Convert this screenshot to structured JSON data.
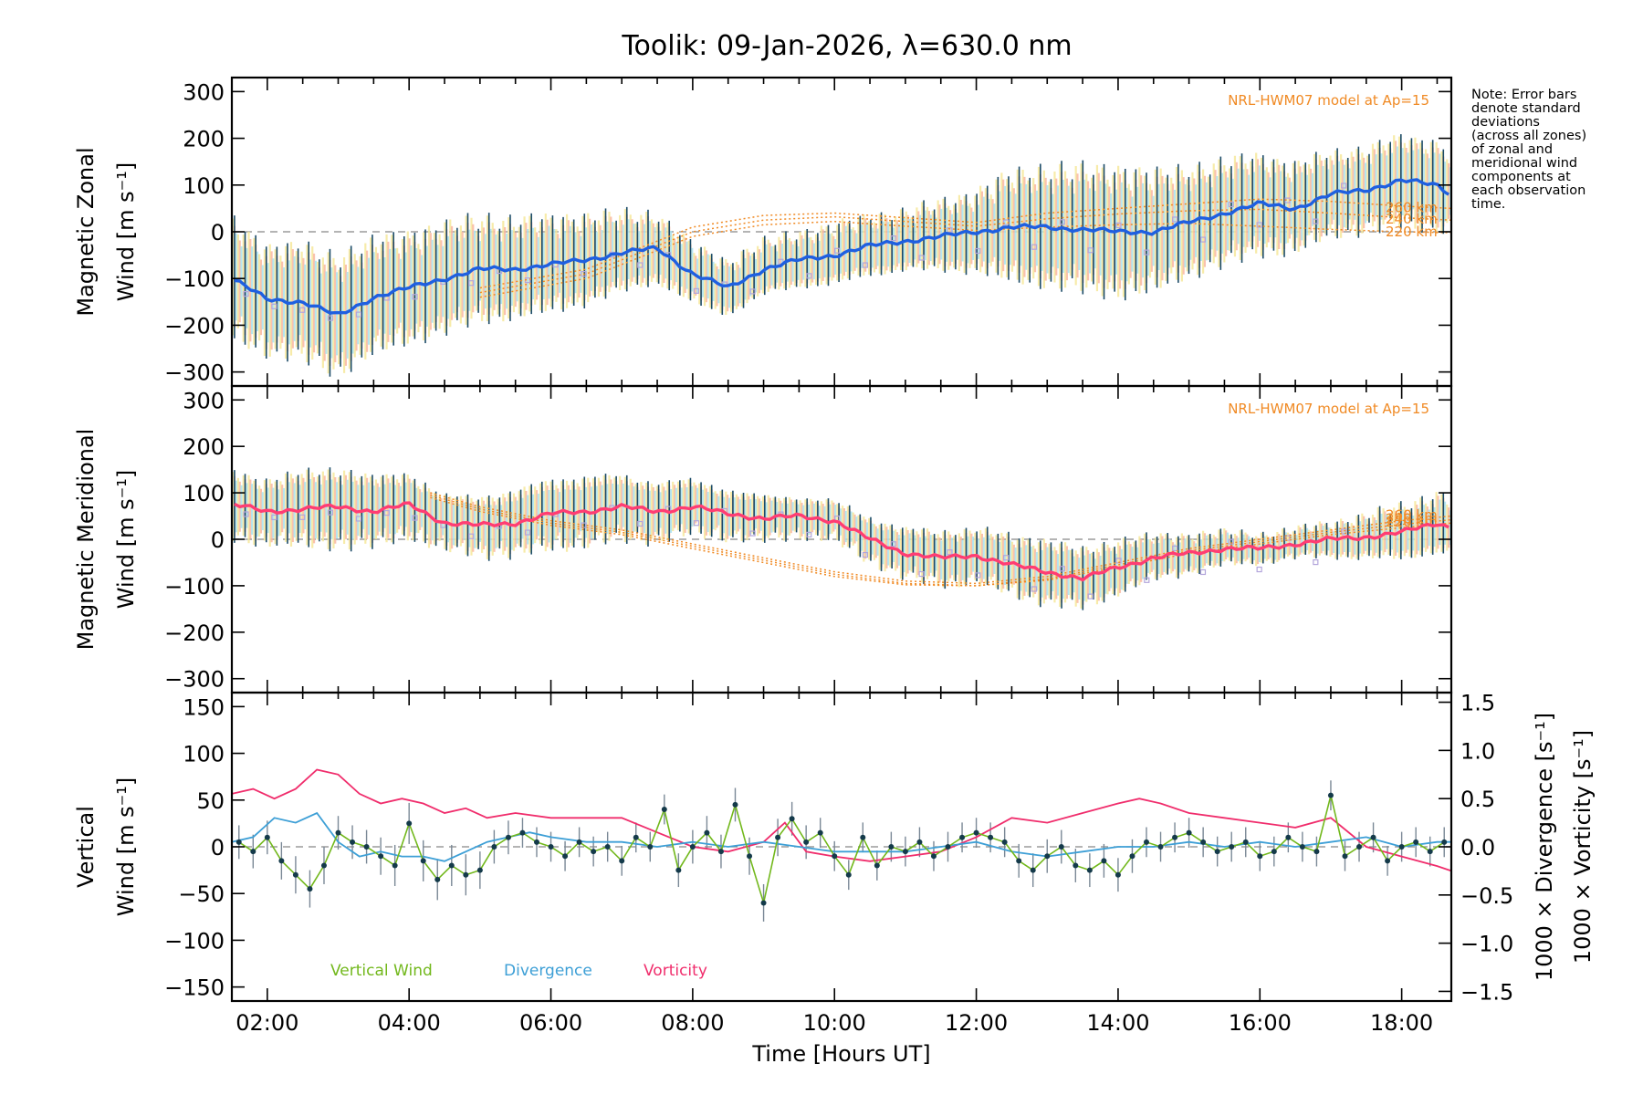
{
  "title": "Toolik: 09-Jan-2026, λ=630.0 nm",
  "note": [
    "Note: Error bars",
    "denote standard",
    "deviations",
    "(across all zones)",
    "of zonal and",
    "meridional wind",
    "components at",
    "each observation",
    "time."
  ],
  "colors": {
    "zonal": "#1f5fe0",
    "meridional": "#ff3d73",
    "vertical": "#72b81c",
    "divergence": "#3d9fd6",
    "vorticity": "#f02d6c",
    "model": "#f08a24",
    "errorbar": "#1a4a66",
    "zone_spread_a": "#f6e79a",
    "zone_spread_b": "#f9b7a0",
    "zone_spread_c": "#a9e2ee",
    "outlier": "#b3a6db"
  },
  "chart_data": [
    {
      "id": "zonal",
      "type": "line",
      "title": "Toolik: 09-Jan-2026, λ=630.0 nm",
      "ylabel": [
        "Magnetic Zonal",
        "Wind [m s⁻¹]"
      ],
      "xlabel": "",
      "xlim": [
        1.5,
        18.7
      ],
      "ylim": [
        -330,
        330
      ],
      "yticks": [
        -300,
        -200,
        -100,
        0,
        100,
        200,
        300
      ],
      "ytick_labels": [
        "−300",
        "−200",
        "−100",
        "0",
        "100",
        "200",
        "300"
      ],
      "zero_line": true,
      "annotation": "NRL-HWM07 model at Ap=15",
      "model_heights": [
        "260 km",
        "240 km",
        "220 km"
      ],
      "series": [
        {
          "name": "Magnetic Zonal Wind",
          "x": [
            1.5,
            2.0,
            2.5,
            3.0,
            3.5,
            4.0,
            4.5,
            5.0,
            5.5,
            6.0,
            6.5,
            7.0,
            7.5,
            8.0,
            8.5,
            9.0,
            9.5,
            10.0,
            10.5,
            11.0,
            11.5,
            12.0,
            12.5,
            13.0,
            13.5,
            14.0,
            14.5,
            15.0,
            15.5,
            16.0,
            16.5,
            17.0,
            17.5,
            18.0,
            18.5,
            18.7
          ],
          "y": [
            -100,
            -145,
            -150,
            -180,
            -140,
            -120,
            -100,
            -80,
            -80,
            -70,
            -60,
            -45,
            -35,
            -90,
            -120,
            -80,
            -60,
            -50,
            -30,
            -20,
            -10,
            0,
            10,
            10,
            5,
            0,
            0,
            20,
            40,
            60,
            50,
            80,
            90,
            110,
            100,
            80
          ],
          "err": [
            120,
            110,
            115,
            120,
            115,
            110,
            110,
            105,
            100,
            95,
            90,
            80,
            70,
            60,
            55,
            55,
            55,
            60,
            60,
            60,
            70,
            80,
            110,
            120,
            125,
            130,
            120,
            110,
            105,
            100,
            90,
            85,
            85,
            90,
            90,
            80
          ]
        },
        {
          "name": "HWM07 260 km",
          "x": [
            5.0,
            6.5,
            8.0,
            9.0,
            10.0,
            11.0,
            12.0,
            13.0,
            14.0,
            15.0,
            16.0,
            17.0,
            18.0,
            18.7
          ],
          "y": [
            -120,
            -80,
            10,
            35,
            40,
            30,
            20,
            40,
            50,
            60,
            70,
            65,
            55,
            50
          ]
        },
        {
          "name": "HWM07 240 km",
          "x": [
            5.0,
            6.5,
            8.0,
            9.0,
            10.0,
            11.0,
            12.0,
            13.0,
            14.0,
            15.0,
            16.0,
            17.0,
            18.0,
            18.7
          ],
          "y": [
            -130,
            -90,
            0,
            25,
            32,
            22,
            12,
            28,
            38,
            45,
            48,
            40,
            30,
            25
          ]
        },
        {
          "name": "HWM07 220 km",
          "x": [
            5.0,
            6.5,
            8.0,
            9.0,
            10.0,
            11.0,
            12.0,
            13.0,
            14.0,
            15.0,
            16.0,
            17.0,
            18.0,
            18.7
          ],
          "y": [
            -140,
            -100,
            -10,
            15,
            22,
            12,
            3,
            10,
            15,
            18,
            12,
            5,
            0,
            -2
          ]
        }
      ]
    },
    {
      "id": "meridional",
      "type": "line",
      "ylabel": [
        "Magnetic Meridional",
        "Wind [m s⁻¹]"
      ],
      "xlabel": "",
      "xlim": [
        1.5,
        18.7
      ],
      "ylim": [
        -330,
        330
      ],
      "yticks": [
        -300,
        -200,
        -100,
        0,
        100,
        200,
        300
      ],
      "ytick_labels": [
        "−300",
        "−200",
        "−100",
        "0",
        "100",
        "200",
        "300"
      ],
      "zero_line": true,
      "annotation": "NRL-HWM07 model at Ap=15",
      "model_heights": [
        "260 km",
        "240 km",
        "220 km"
      ],
      "series": [
        {
          "name": "Magnetic Meridional Wind",
          "x": [
            1.5,
            2.0,
            2.5,
            3.0,
            3.5,
            4.0,
            4.5,
            5.0,
            5.5,
            6.0,
            6.5,
            7.0,
            7.5,
            8.0,
            8.5,
            9.0,
            9.5,
            10.0,
            10.5,
            11.0,
            11.5,
            12.0,
            12.5,
            13.0,
            13.5,
            14.0,
            14.5,
            15.0,
            15.5,
            16.0,
            16.5,
            17.0,
            17.5,
            18.0,
            18.5,
            18.7
          ],
          "y": [
            75,
            60,
            65,
            70,
            60,
            75,
            35,
            30,
            35,
            55,
            60,
            70,
            60,
            70,
            55,
            45,
            50,
            40,
            0,
            -30,
            -40,
            -35,
            -55,
            -70,
            -85,
            -60,
            -40,
            -30,
            -20,
            -20,
            -10,
            0,
            5,
            15,
            35,
            25
          ],
          "err": [
            70,
            65,
            75,
            80,
            70,
            65,
            55,
            60,
            65,
            70,
            70,
            65,
            60,
            55,
            50,
            45,
            40,
            40,
            45,
            50,
            55,
            55,
            60,
            65,
            60,
            55,
            45,
            40,
            35,
            30,
            30,
            35,
            45,
            55,
            60,
            60
          ]
        },
        {
          "name": "HWM07 260 km",
          "x": [
            4.3,
            5.0,
            6.0,
            7.0,
            8.0,
            9.0,
            10.0,
            11.0,
            12.0,
            13.0,
            14.0,
            15.0,
            16.0,
            17.0,
            18.0,
            18.7
          ],
          "y": [
            100,
            70,
            40,
            20,
            -10,
            -40,
            -70,
            -90,
            -95,
            -80,
            -50,
            -20,
            0,
            20,
            40,
            50
          ]
        },
        {
          "name": "HWM07 240 km",
          "x": [
            4.3,
            5.0,
            6.0,
            7.0,
            8.0,
            9.0,
            10.0,
            11.0,
            12.0,
            13.0,
            14.0,
            15.0,
            16.0,
            17.0,
            18.0,
            18.7
          ],
          "y": [
            95,
            65,
            35,
            15,
            -15,
            -45,
            -75,
            -95,
            -100,
            -85,
            -55,
            -25,
            -5,
            15,
            32,
            42
          ]
        },
        {
          "name": "HWM07 220 km",
          "x": [
            4.3,
            5.0,
            6.0,
            7.0,
            8.0,
            9.0,
            10.0,
            11.0,
            12.0,
            13.0,
            14.0,
            15.0,
            16.0,
            17.0,
            18.0,
            18.7
          ],
          "y": [
            90,
            60,
            30,
            10,
            -20,
            -50,
            -80,
            -98,
            -100,
            -88,
            -60,
            -30,
            -10,
            10,
            25,
            35
          ]
        }
      ]
    },
    {
      "id": "vertical",
      "type": "line",
      "ylabel_left": [
        "Vertical",
        "Wind [m s⁻¹]"
      ],
      "ylabel_right_1": "1000 × Divergence [s⁻¹]",
      "ylabel_right_2": "1000 × Vorticity [s⁻¹]",
      "xlabel": "Time [Hours UT]",
      "xlim": [
        1.5,
        18.7
      ],
      "ylim": [
        -165,
        165
      ],
      "yticks": [
        -150,
        -100,
        -50,
        0,
        50,
        100,
        150
      ],
      "ytick_labels": [
        "−150",
        "−100",
        "−50",
        "0",
        "50",
        "100",
        "150"
      ],
      "ylim_right": [
        -1.6,
        1.6
      ],
      "yticks_right": [
        -1.5,
        -1.0,
        -0.5,
        0.0,
        0.5,
        1.0,
        1.5
      ],
      "ytick_labels_right": [
        "−1.5",
        "−1.0",
        "−0.5",
        "0.0",
        "0.5",
        "1.0",
        "1.5"
      ],
      "xticks": [
        2,
        4,
        6,
        8,
        10,
        12,
        14,
        16,
        18
      ],
      "xtick_labels": [
        "02:00",
        "04:00",
        "06:00",
        "08:00",
        "10:00",
        "12:00",
        "14:00",
        "16:00",
        "18:00"
      ],
      "zero_line": true,
      "legend": [
        "Vertical Wind",
        "Divergence",
        "Vorticity"
      ],
      "series": [
        {
          "name": "Vertical Wind",
          "axis": "left",
          "x": [
            1.6,
            1.8,
            2.0,
            2.2,
            2.4,
            2.6,
            2.8,
            3.0,
            3.2,
            3.4,
            3.6,
            3.8,
            4.0,
            4.2,
            4.4,
            4.6,
            4.8,
            5.0,
            5.2,
            5.4,
            5.6,
            5.8,
            6.0,
            6.2,
            6.4,
            6.6,
            6.8,
            7.0,
            7.2,
            7.4,
            7.6,
            7.8,
            8.0,
            8.2,
            8.4,
            8.6,
            8.8,
            9.0,
            9.2,
            9.4,
            9.6,
            9.8,
            10.0,
            10.2,
            10.4,
            10.6,
            10.8,
            11.0,
            11.2,
            11.4,
            11.6,
            11.8,
            12.0,
            12.2,
            12.4,
            12.6,
            12.8,
            13.0,
            13.2,
            13.4,
            13.6,
            13.8,
            14.0,
            14.2,
            14.4,
            14.6,
            14.8,
            15.0,
            15.2,
            15.4,
            15.6,
            15.8,
            16.0,
            16.2,
            16.4,
            16.6,
            16.8,
            17.0,
            17.2,
            17.4,
            17.6,
            17.8,
            18.0,
            18.2,
            18.4,
            18.6
          ],
          "y": [
            5,
            -5,
            10,
            -15,
            -30,
            -45,
            -20,
            15,
            5,
            0,
            -10,
            -20,
            25,
            -15,
            -35,
            -20,
            -30,
            -25,
            0,
            10,
            15,
            5,
            0,
            -10,
            5,
            -5,
            0,
            -15,
            10,
            0,
            40,
            -25,
            0,
            15,
            -5,
            45,
            -10,
            -60,
            10,
            30,
            5,
            15,
            -10,
            -30,
            10,
            -20,
            0,
            -5,
            5,
            -10,
            0,
            10,
            15,
            10,
            5,
            -15,
            -25,
            -10,
            0,
            -20,
            -25,
            -15,
            -30,
            -10,
            5,
            0,
            10,
            15,
            5,
            -5,
            0,
            5,
            -10,
            -5,
            10,
            0,
            -5,
            55,
            -10,
            0,
            10,
            -15,
            0,
            5,
            -5,
            5
          ],
          "err": [
            18,
            18,
            18,
            20,
            20,
            20,
            20,
            18,
            18,
            18,
            20,
            22,
            22,
            22,
            22,
            22,
            22,
            20,
            18,
            18,
            16,
            16,
            16,
            16,
            16,
            16,
            16,
            16,
            16,
            16,
            16,
            18,
            18,
            18,
            18,
            18,
            20,
            20,
            20,
            18,
            18,
            16,
            16,
            16,
            16,
            16,
            16,
            16,
            16,
            16,
            16,
            16,
            16,
            16,
            16,
            18,
            18,
            18,
            18,
            18,
            18,
            18,
            18,
            18,
            16,
            16,
            16,
            16,
            16,
            16,
            16,
            16,
            16,
            16,
            16,
            16,
            16,
            16,
            16,
            16,
            16,
            16,
            16,
            16,
            16,
            16
          ]
        },
        {
          "name": "Divergence",
          "axis": "right",
          "x": [
            1.5,
            1.8,
            2.1,
            2.4,
            2.7,
            3.0,
            3.3,
            3.6,
            3.9,
            4.2,
            4.5,
            4.8,
            5.1,
            5.4,
            5.7,
            6.0,
            6.5,
            7.0,
            7.5,
            8.0,
            8.5,
            9.0,
            9.5,
            10.0,
            10.5,
            11.0,
            11.5,
            12.0,
            12.5,
            13.0,
            13.5,
            14.0,
            14.5,
            15.0,
            15.5,
            16.0,
            16.5,
            17.0,
            17.5,
            18.0,
            18.5,
            18.7
          ],
          "y": [
            0.05,
            0.1,
            0.3,
            0.25,
            0.35,
            0.05,
            -0.1,
            -0.05,
            -0.1,
            -0.1,
            -0.15,
            -0.05,
            0.05,
            0.1,
            0.15,
            0.1,
            0.05,
            0.05,
            0.0,
            0.05,
            0.0,
            0.05,
            0.0,
            -0.05,
            -0.05,
            -0.05,
            0.0,
            0.05,
            -0.05,
            -0.1,
            -0.05,
            0.0,
            0.0,
            0.05,
            0.0,
            0.05,
            0.0,
            0.05,
            0.1,
            0.0,
            0.05,
            0.05
          ]
        },
        {
          "name": "Vorticity",
          "axis": "right",
          "x": [
            1.5,
            1.8,
            2.1,
            2.4,
            2.7,
            3.0,
            3.3,
            3.6,
            3.9,
            4.2,
            4.5,
            4.8,
            5.1,
            5.5,
            6.0,
            6.5,
            7.0,
            7.5,
            8.0,
            8.5,
            9.0,
            9.3,
            9.6,
            10.0,
            10.5,
            11.0,
            11.5,
            12.0,
            12.5,
            13.0,
            13.5,
            14.0,
            14.3,
            14.6,
            15.0,
            15.5,
            16.0,
            16.5,
            17.0,
            17.5,
            18.0,
            18.5,
            18.7
          ],
          "y": [
            0.55,
            0.6,
            0.5,
            0.6,
            0.8,
            0.75,
            0.55,
            0.45,
            0.5,
            0.45,
            0.35,
            0.4,
            0.3,
            0.35,
            0.3,
            0.3,
            0.3,
            0.15,
            0.0,
            -0.05,
            0.05,
            0.25,
            -0.05,
            -0.1,
            -0.15,
            -0.1,
            -0.05,
            0.1,
            0.3,
            0.25,
            0.35,
            0.45,
            0.5,
            0.45,
            0.35,
            0.3,
            0.25,
            0.2,
            0.3,
            0.0,
            -0.1,
            -0.2,
            -0.25
          ]
        }
      ]
    }
  ]
}
